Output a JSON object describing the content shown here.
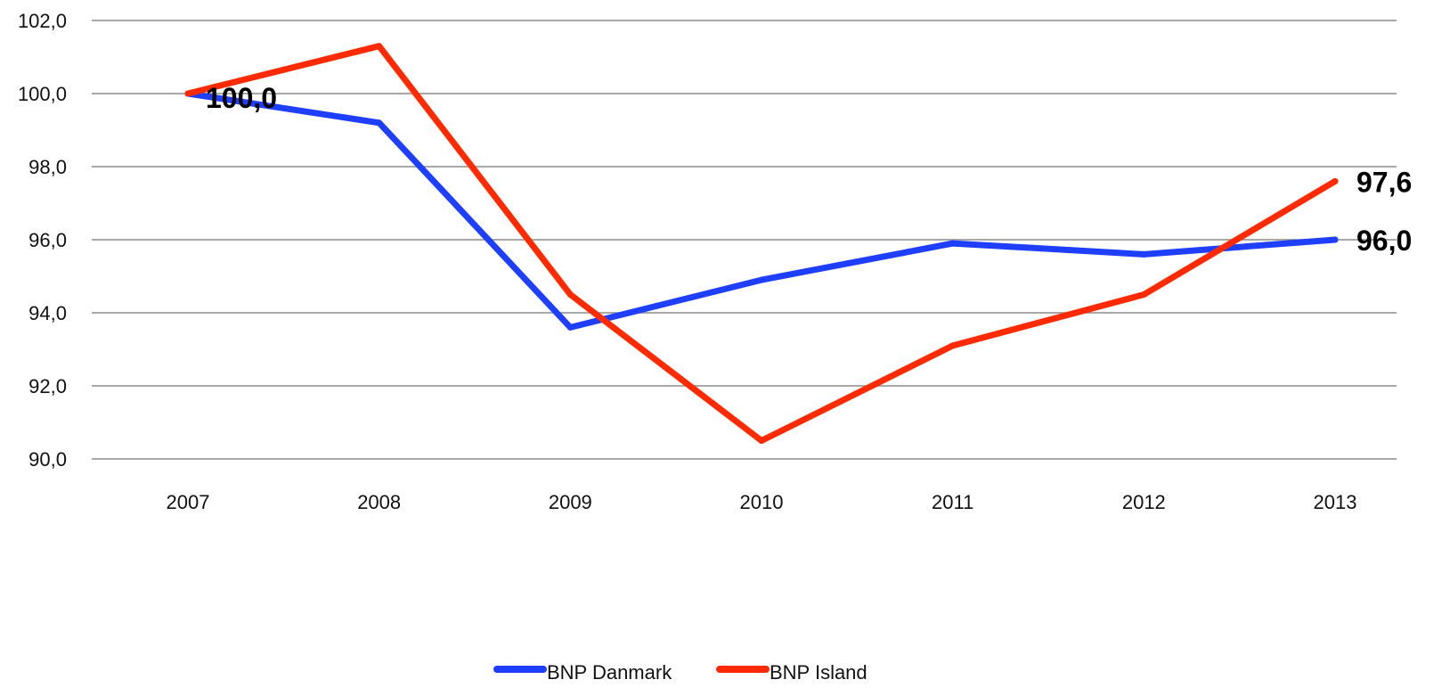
{
  "chart_data": {
    "type": "line",
    "title": "",
    "xlabel": "",
    "ylabel": "",
    "categories": [
      "2007",
      "2008",
      "2009",
      "2010",
      "2011",
      "2012",
      "2013"
    ],
    "ylim": [
      90,
      102
    ],
    "yticks": [
      "90,0",
      "92,0",
      "94,0",
      "96,0",
      "98,0",
      "100,0",
      "102,0"
    ],
    "ytick_values": [
      90,
      92,
      94,
      96,
      98,
      100,
      102
    ],
    "grid": true,
    "legend_position": "bottom",
    "series": [
      {
        "name": "BNP Danmark",
        "color": "#1f3fff",
        "values": [
          100.0,
          99.2,
          93.6,
          94.9,
          95.9,
          95.6,
          96.0
        ]
      },
      {
        "name": "BNP Island",
        "color": "#ff2a00",
        "values": [
          100.0,
          101.3,
          94.5,
          90.5,
          93.1,
          94.5,
          97.6
        ]
      }
    ],
    "data_labels": [
      {
        "text": "100,0",
        "series": 0,
        "index": 0
      },
      {
        "text": "96,0",
        "series": 0,
        "index": 6
      },
      {
        "text": "97,6",
        "series": 1,
        "index": 6
      }
    ]
  }
}
